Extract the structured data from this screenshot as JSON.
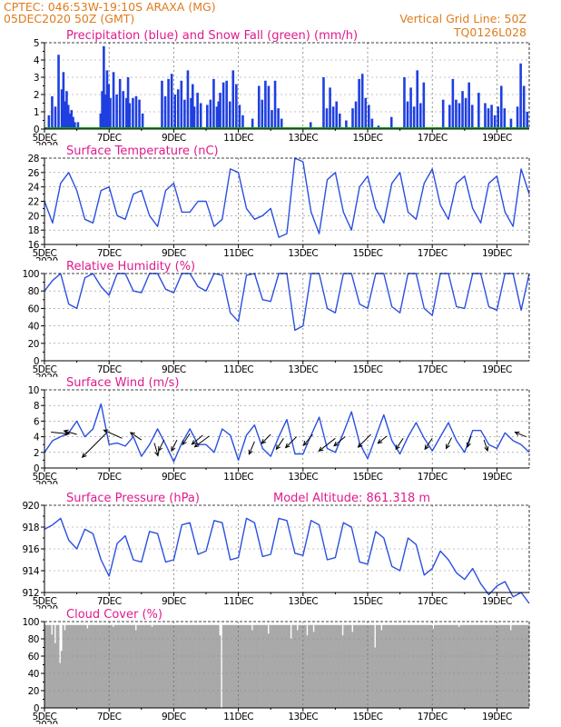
{
  "header": {
    "line1_left": "CPTEC:   046:53W-19:10S   ARAXA (MG)",
    "line2_left": "05DEC2020 50Z (GMT)",
    "line1_right": "Vertical Grid Line: 50Z",
    "line2_right": "TQ0126L028"
  },
  "x_axis": {
    "range_days": [
      0,
      15
    ],
    "ticks": [
      {
        "day": 0,
        "label": "5DEC",
        "sub": "2020"
      },
      {
        "day": 2,
        "label": "7DEC",
        "sub": ""
      },
      {
        "day": 4,
        "label": "9DEC",
        "sub": ""
      },
      {
        "day": 6,
        "label": "11DEC",
        "sub": ""
      },
      {
        "day": 8,
        "label": "13DEC",
        "sub": ""
      },
      {
        "day": 10,
        "label": "15DEC",
        "sub": ""
      },
      {
        "day": 12,
        "label": "17DEC",
        "sub": ""
      },
      {
        "day": 14,
        "label": "19DEC",
        "sub": ""
      }
    ]
  },
  "colors": {
    "precip": "#1f3fe0",
    "snow": "#1aa01a",
    "line": "#2b4fe0",
    "cloud": "#a9a9a9",
    "title": "#e01a8c",
    "header": "#e07b1c"
  },
  "chart_data": [
    {
      "id": "precip",
      "type": "bar",
      "title": "Precipitation (blue) and Snow Fall (green) (mm/h)",
      "ylim": [
        0,
        5
      ],
      "yticks": [
        0,
        1,
        2,
        3,
        4,
        5
      ],
      "snow_value": 0,
      "x": [
        0.1,
        0.2,
        0.3,
        0.4,
        0.5,
        0.55,
        0.6,
        0.65,
        0.7,
        0.75,
        0.8,
        0.85,
        0.9,
        1.0,
        1.7,
        1.75,
        1.8,
        1.85,
        1.9,
        1.95,
        2.0,
        2.1,
        2.2,
        2.3,
        2.4,
        2.5,
        2.55,
        2.6,
        2.7,
        2.8,
        2.9,
        3.0,
        3.6,
        3.7,
        3.8,
        3.9,
        4.0,
        4.1,
        4.2,
        4.3,
        4.4,
        4.5,
        4.55,
        4.6,
        4.7,
        4.8,
        5.0,
        5.1,
        5.2,
        5.3,
        5.35,
        5.4,
        5.5,
        5.6,
        5.7,
        5.8,
        5.9,
        6.0,
        6.1,
        6.4,
        6.6,
        6.7,
        6.8,
        6.9,
        7.0,
        7.1,
        7.2,
        7.3,
        8.2,
        8.6,
        8.7,
        8.8,
        8.9,
        9.0,
        9.1,
        9.3,
        9.5,
        9.6,
        9.7,
        9.8,
        9.9,
        10.0,
        10.1,
        10.3,
        10.7,
        11.1,
        11.2,
        11.3,
        11.4,
        11.5,
        11.6,
        11.7,
        12.3,
        12.5,
        12.6,
        12.7,
        12.8,
        12.9,
        13.0,
        13.1,
        13.2,
        13.4,
        13.6,
        13.7,
        13.8,
        13.9,
        14.0,
        14.1,
        14.2,
        14.4,
        14.6,
        14.7,
        14.8,
        14.9
      ],
      "values": [
        0.8,
        1.9,
        1.3,
        4.3,
        2.3,
        3.3,
        1.6,
        2.2,
        1.4,
        0.9,
        1.1,
        0.7,
        0.4,
        0.4,
        0.9,
        2.2,
        4.8,
        2.0,
        3.4,
        2.6,
        1.8,
        3.3,
        2.0,
        2.9,
        2.2,
        1.8,
        3.0,
        1.5,
        1.8,
        1.9,
        1.7,
        0.9,
        2.8,
        1.9,
        2.9,
        3.2,
        2.0,
        2.3,
        2.8,
        1.7,
        3.4,
        1.8,
        2.6,
        1.3,
        2.1,
        1.5,
        1.4,
        1.7,
        2.9,
        1.3,
        1.6,
        2.1,
        2.7,
        2.8,
        1.6,
        3.4,
        2.6,
        1.4,
        0.8,
        0.6,
        2.5,
        1.7,
        2.8,
        2.5,
        1.1,
        2.8,
        1.2,
        0.6,
        0.4,
        3.0,
        1.2,
        2.4,
        1.3,
        1.6,
        0.9,
        0.5,
        1.2,
        1.6,
        2.9,
        3.2,
        1.8,
        1.4,
        0.6,
        0.2,
        0.7,
        3.0,
        1.6,
        2.4,
        1.3,
        3.4,
        1.5,
        2.7,
        1.7,
        1.4,
        2.9,
        1.7,
        1.5,
        2.2,
        1.8,
        2.7,
        1.4,
        2.1,
        1.5,
        1.2,
        1.4,
        0.8,
        1.3,
        2.5,
        1.2,
        0.6,
        1.3,
        3.8,
        2.5,
        1.0
      ]
    },
    {
      "id": "temp",
      "type": "line",
      "title": "Surface Temperature (nC)",
      "ylim": [
        16,
        28
      ],
      "yticks": [
        16,
        18,
        20,
        22,
        24,
        26,
        28
      ],
      "x": [
        0,
        0.25,
        0.5,
        0.75,
        1.0,
        1.25,
        1.5,
        1.75,
        2.0,
        2.25,
        2.5,
        2.75,
        3.0,
        3.25,
        3.5,
        3.75,
        4.0,
        4.25,
        4.5,
        4.75,
        5.0,
        5.25,
        5.5,
        5.75,
        6.0,
        6.25,
        6.5,
        6.75,
        7.0,
        7.25,
        7.5,
        7.75,
        8.0,
        8.25,
        8.5,
        8.75,
        9.0,
        9.25,
        9.5,
        9.75,
        10.0,
        10.25,
        10.5,
        10.75,
        11.0,
        11.25,
        11.5,
        11.75,
        12.0,
        12.25,
        12.5,
        12.75,
        13.0,
        13.25,
        13.5,
        13.75,
        14.0,
        14.25,
        14.5,
        14.75,
        15.0
      ],
      "values": [
        22.0,
        19.0,
        24.5,
        26.0,
        23.5,
        19.5,
        19.0,
        23.5,
        24.0,
        20.0,
        19.5,
        23.0,
        23.5,
        20.0,
        18.5,
        23.5,
        24.5,
        20.5,
        20.5,
        22.0,
        22.0,
        18.5,
        19.5,
        26.5,
        26.0,
        21.0,
        19.5,
        20.0,
        21.0,
        17.0,
        17.5,
        28.0,
        27.5,
        20.5,
        17.5,
        25.0,
        26.0,
        20.5,
        18.0,
        24.0,
        25.5,
        21.0,
        19.0,
        24.5,
        26.0,
        20.5,
        19.5,
        24.5,
        26.5,
        21.5,
        19.5,
        24.5,
        25.5,
        21.0,
        19.0,
        24.5,
        25.5,
        20.5,
        18.5,
        26.5,
        23.0
      ]
    },
    {
      "id": "rh",
      "type": "line",
      "title": "Relative Humidity (%)",
      "ylim": [
        0,
        100
      ],
      "yticks": [
        0,
        20,
        40,
        60,
        80,
        100
      ],
      "x": [
        0,
        0.25,
        0.5,
        0.75,
        1.0,
        1.25,
        1.5,
        1.75,
        2.0,
        2.25,
        2.5,
        2.75,
        3.0,
        3.25,
        3.5,
        3.75,
        4.0,
        4.25,
        4.5,
        4.75,
        5.0,
        5.25,
        5.5,
        5.75,
        6.0,
        6.25,
        6.5,
        6.75,
        7.0,
        7.25,
        7.5,
        7.75,
        8.0,
        8.25,
        8.5,
        8.75,
        9.0,
        9.25,
        9.5,
        9.75,
        10.0,
        10.25,
        10.5,
        10.75,
        11.0,
        11.25,
        11.5,
        11.75,
        12.0,
        12.25,
        12.5,
        12.75,
        13.0,
        13.25,
        13.5,
        13.75,
        14.0,
        14.25,
        14.5,
        14.75,
        15.0
      ],
      "values": [
        80,
        92,
        100,
        65,
        60,
        95,
        100,
        85,
        75,
        100,
        100,
        80,
        78,
        100,
        100,
        82,
        78,
        100,
        100,
        85,
        80,
        100,
        98,
        55,
        45,
        98,
        100,
        70,
        68,
        100,
        100,
        35,
        40,
        100,
        100,
        60,
        55,
        100,
        100,
        65,
        60,
        100,
        100,
        62,
        55,
        100,
        100,
        60,
        52,
        100,
        100,
        62,
        60,
        100,
        100,
        62,
        58,
        100,
        100,
        58,
        100
      ]
    },
    {
      "id": "wind",
      "type": "line",
      "title": "Surface Wind (m/s)",
      "ylim": [
        0,
        10
      ],
      "yticks": [
        0,
        2,
        4,
        6,
        8,
        10
      ],
      "x": [
        0,
        0.25,
        0.5,
        0.75,
        1.0,
        1.25,
        1.5,
        1.75,
        2.0,
        2.25,
        2.5,
        2.75,
        3.0,
        3.25,
        3.5,
        3.75,
        4.0,
        4.25,
        4.5,
        4.75,
        5.0,
        5.25,
        5.5,
        5.75,
        6.0,
        6.25,
        6.5,
        6.75,
        7.0,
        7.25,
        7.5,
        7.75,
        8.0,
        8.25,
        8.5,
        8.75,
        9.0,
        9.25,
        9.5,
        9.75,
        10.0,
        10.25,
        10.5,
        10.75,
        11.0,
        11.25,
        11.5,
        11.75,
        12.0,
        12.25,
        12.5,
        12.75,
        13.0,
        13.25,
        13.5,
        13.75,
        14.0,
        14.25,
        14.5,
        14.75,
        15.0
      ],
      "values": [
        2.0,
        3.5,
        4.0,
        4.5,
        6.0,
        4.0,
        5.0,
        8.2,
        3.0,
        3.2,
        2.8,
        4.0,
        1.5,
        3.0,
        5.0,
        3.0,
        0.8,
        3.2,
        5.0,
        3.0,
        3.0,
        2.0,
        5.0,
        4.2,
        1.0,
        4.2,
        5.5,
        2.5,
        1.5,
        4.0,
        6.2,
        1.8,
        1.8,
        4.2,
        6.5,
        2.5,
        2.0,
        4.5,
        7.2,
        3.2,
        1.2,
        4.0,
        6.8,
        3.5,
        1.8,
        4.0,
        5.8,
        3.8,
        2.2,
        4.0,
        5.8,
        3.5,
        2.0,
        4.8,
        4.8,
        3.0,
        2.5,
        4.5,
        3.5,
        3.0,
        2.0
      ],
      "arrows": [
        {
          "x": 0.2,
          "y": 4.6,
          "dx": 20,
          "dy": 2
        },
        {
          "x": 1.0,
          "y": 4.3,
          "dx": -14,
          "dy": -4
        },
        {
          "x": 1.9,
          "y": 4.4,
          "dx": -26,
          "dy": 26
        },
        {
          "x": 2.4,
          "y": 3.8,
          "dx": -20,
          "dy": -9
        },
        {
          "x": 3.0,
          "y": 3.6,
          "dx": -12,
          "dy": -8
        },
        {
          "x": 3.4,
          "y": 3.2,
          "dx": 4,
          "dy": 14
        },
        {
          "x": 3.7,
          "y": 3.6,
          "dx": -6,
          "dy": 12
        },
        {
          "x": 4.1,
          "y": 3.6,
          "dx": -6,
          "dy": 12
        },
        {
          "x": 4.5,
          "y": 4.4,
          "dx": -8,
          "dy": 12
        },
        {
          "x": 4.9,
          "y": 4.2,
          "dx": -12,
          "dy": 10
        },
        {
          "x": 5.1,
          "y": 4.1,
          "dx": -16,
          "dy": 12
        },
        {
          "x": 6.5,
          "y": 3.4,
          "dx": -6,
          "dy": 14
        },
        {
          "x": 7.0,
          "y": 4.3,
          "dx": -10,
          "dy": 10
        },
        {
          "x": 7.4,
          "y": 3.8,
          "dx": -8,
          "dy": 12
        },
        {
          "x": 7.8,
          "y": 4.0,
          "dx": -12,
          "dy": 12
        },
        {
          "x": 8.3,
          "y": 4.3,
          "dx": -10,
          "dy": 12
        },
        {
          "x": 9.0,
          "y": 3.8,
          "dx": -18,
          "dy": 14
        },
        {
          "x": 9.3,
          "y": 4.0,
          "dx": -12,
          "dy": 10
        },
        {
          "x": 10.1,
          "y": 4.3,
          "dx": -14,
          "dy": 14
        },
        {
          "x": 10.6,
          "y": 4.1,
          "dx": -10,
          "dy": 8
        },
        {
          "x": 11.1,
          "y": 3.8,
          "dx": -8,
          "dy": 12
        },
        {
          "x": 12.0,
          "y": 3.8,
          "dx": -8,
          "dy": 12
        },
        {
          "x": 12.6,
          "y": 3.9,
          "dx": -6,
          "dy": 12
        },
        {
          "x": 13.2,
          "y": 4.1,
          "dx": -4,
          "dy": 12
        },
        {
          "x": 13.6,
          "y": 3.6,
          "dx": 4,
          "dy": 12
        },
        {
          "x": 14.9,
          "y": 4.0,
          "dx": -12,
          "dy": -5
        }
      ]
    },
    {
      "id": "pressure",
      "type": "line",
      "title": "Surface Pressure (hPa)",
      "subtitle": "Model Altitude: 861.318 m",
      "ylim": [
        912,
        920
      ],
      "yticks": [
        912,
        914,
        916,
        918,
        920
      ],
      "x": [
        0,
        0.25,
        0.5,
        0.75,
        1.0,
        1.25,
        1.5,
        1.75,
        2.0,
        2.25,
        2.5,
        2.75,
        3.0,
        3.25,
        3.5,
        3.75,
        4.0,
        4.25,
        4.5,
        4.75,
        5.0,
        5.25,
        5.5,
        5.75,
        6.0,
        6.25,
        6.5,
        6.75,
        7.0,
        7.25,
        7.5,
        7.75,
        8.0,
        8.25,
        8.5,
        8.75,
        9.0,
        9.25,
        9.5,
        9.75,
        10.0,
        10.25,
        10.5,
        10.75,
        11.0,
        11.25,
        11.5,
        11.75,
        12.0,
        12.25,
        12.5,
        12.75,
        13.0,
        13.25,
        13.5,
        13.75,
        14.0,
        14.25,
        14.5,
        14.75,
        15.0
      ],
      "values": [
        917.8,
        918.2,
        918.8,
        916.8,
        916.0,
        917.8,
        917.4,
        915.0,
        913.5,
        916.5,
        917.2,
        915.0,
        914.8,
        917.6,
        917.4,
        914.8,
        915.0,
        918.2,
        918.4,
        915.5,
        915.8,
        918.6,
        918.4,
        915.0,
        915.2,
        918.8,
        918.4,
        915.3,
        915.5,
        918.8,
        918.6,
        915.6,
        915.4,
        918.6,
        918.2,
        915.0,
        915.2,
        918.4,
        918.0,
        914.8,
        914.6,
        917.6,
        917.0,
        914.4,
        914.0,
        917.0,
        916.4,
        913.6,
        914.2,
        915.8,
        915.0,
        913.8,
        913.2,
        914.2,
        912.8,
        911.8,
        912.6,
        913.0,
        911.6,
        912.0,
        911.0
      ]
    },
    {
      "id": "cloud",
      "type": "bar",
      "title": "Cloud Cover (%)",
      "ylim": [
        0,
        100
      ],
      "yticks": [
        0,
        20,
        40,
        60,
        80,
        100
      ],
      "base": 96,
      "dips": [
        {
          "x": 0.2,
          "value": 85
        },
        {
          "x": 0.32,
          "value": 75
        },
        {
          "x": 0.45,
          "value": 52
        },
        {
          "x": 0.5,
          "value": 66
        },
        {
          "x": 0.6,
          "value": 90
        },
        {
          "x": 1.3,
          "value": 92
        },
        {
          "x": 2.1,
          "value": 94
        },
        {
          "x": 2.8,
          "value": 90
        },
        {
          "x": 3.3,
          "value": 94
        },
        {
          "x": 5.4,
          "value": 84
        },
        {
          "x": 5.45,
          "value": 0
        },
        {
          "x": 6.4,
          "value": 90
        },
        {
          "x": 6.9,
          "value": 86
        },
        {
          "x": 7.6,
          "value": 80
        },
        {
          "x": 7.8,
          "value": 90
        },
        {
          "x": 8.1,
          "value": 84
        },
        {
          "x": 8.3,
          "value": 88
        },
        {
          "x": 9.2,
          "value": 84
        },
        {
          "x": 9.5,
          "value": 88
        },
        {
          "x": 10.2,
          "value": 70
        },
        {
          "x": 10.4,
          "value": 90
        },
        {
          "x": 12.0,
          "value": 92
        },
        {
          "x": 12.8,
          "value": 94
        },
        {
          "x": 14.4,
          "value": 90
        }
      ]
    }
  ]
}
